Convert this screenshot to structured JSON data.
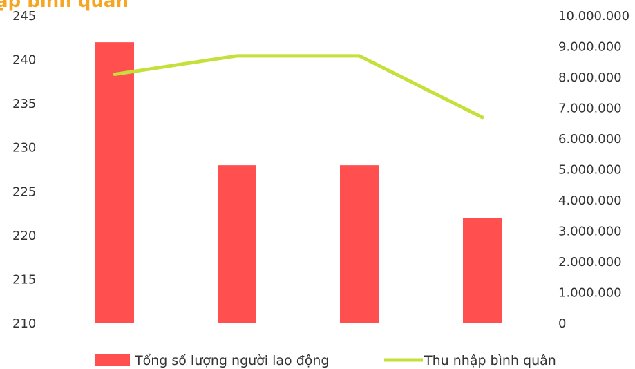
{
  "chart_data": {
    "type": "bar",
    "title": "ập bình quân",
    "title_color": "#F5A623",
    "categories": [
      "",
      "",
      "",
      ""
    ],
    "series": [
      {
        "name": "Tổng số lượng người lao động",
        "type": "bar",
        "axis": "left",
        "color": "#FF4F4F",
        "values": [
          242,
          228,
          228,
          222
        ]
      },
      {
        "name": "Thu nhập bình quân",
        "type": "line",
        "axis": "right",
        "color": "#C5E03A",
        "values": [
          8100000,
          8700000,
          8700000,
          6700000
        ]
      }
    ],
    "y_left": {
      "range": [
        210,
        245
      ],
      "ticks": [
        "245",
        "240",
        "235",
        "230",
        "225",
        "220",
        "215",
        "210"
      ]
    },
    "y_right": {
      "range": [
        0,
        10000000
      ],
      "ticks": [
        "10.000.000",
        "9.000.000",
        "8.000.000",
        "7.000.000",
        "6.000.000",
        "5.000.000",
        "4.000.000",
        "3.000.000",
        "2.000.000",
        "1.000.000",
        "0"
      ]
    },
    "grid": false,
    "legend_position": "bottom"
  }
}
